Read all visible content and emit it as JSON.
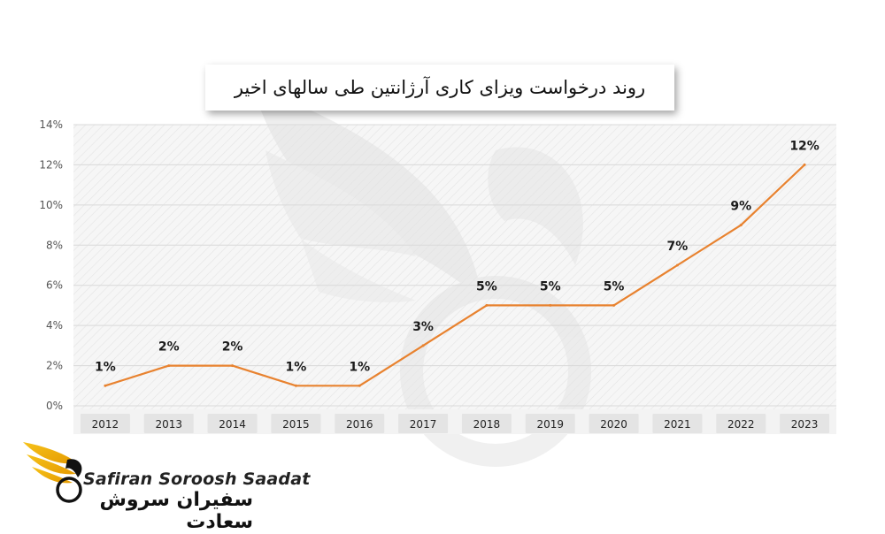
{
  "chart_data": {
    "type": "line",
    "title": "روند درخواست ویزای کاری آرژانتین طی سالهای اخیر",
    "categories": [
      "2012",
      "2013",
      "2014",
      "2015",
      "2016",
      "2017",
      "2018",
      "2019",
      "2020",
      "2021",
      "2022",
      "2023"
    ],
    "series": [
      {
        "values": [
          1,
          2,
          2,
          1,
          1,
          3,
          5,
          5,
          5,
          7,
          9,
          12
        ]
      }
    ],
    "data_labels": [
      "1%",
      "2%",
      "2%",
      "1%",
      "1%",
      "3%",
      "5%",
      "5%",
      "5%",
      "7%",
      "9%",
      "12%"
    ],
    "y_ticks": [
      "0%",
      "2%",
      "4%",
      "6%",
      "8%",
      "10%",
      "12%",
      "14%"
    ],
    "y_tick_values": [
      0,
      2,
      4,
      6,
      8,
      10,
      12,
      14
    ],
    "ylim": [
      0,
      14
    ],
    "xlabel": "",
    "ylabel": "",
    "grid": true,
    "legend": "none",
    "line_color": "#E8822F",
    "label_color": "#1a1a1a"
  },
  "logo": {
    "latin": "Safiran Soroosh Saadat",
    "persian": "سفیران سروش سعادت",
    "icon": "winged-bird-logo-icon",
    "accent_color": "#F2B705"
  },
  "watermark": {
    "icon": "winged-bird-watermark-icon"
  }
}
